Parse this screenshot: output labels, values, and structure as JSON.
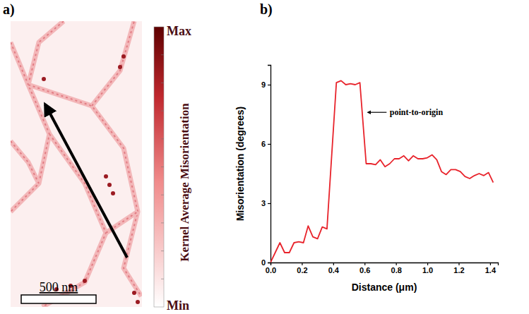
{
  "chart_data": [
    {
      "type": "map",
      "panel": "a)",
      "colorbar": {
        "title": "Kernel Average Misorientation",
        "max_label": "Max",
        "min_label": "Min"
      },
      "scale_bar": "500 nm"
    },
    {
      "type": "line",
      "panel": "b)",
      "xlabel": "Distance (μm)",
      "ylabel": "Misorientation (degrees)",
      "annotation": "point-to-origin",
      "color": "#e8232b",
      "grid": false,
      "x": [
        0,
        0.03,
        0.06,
        0.09,
        0.12,
        0.15,
        0.18,
        0.21,
        0.24,
        0.27,
        0.3,
        0.33,
        0.36,
        0.42,
        0.45,
        0.48,
        0.51,
        0.54,
        0.57,
        0.61,
        0.64,
        0.67,
        0.7,
        0.73,
        0.76,
        0.79,
        0.82,
        0.85,
        0.88,
        0.91,
        0.94,
        0.97,
        1.0,
        1.03,
        1.06,
        1.09,
        1.12,
        1.15,
        1.18,
        1.21,
        1.24,
        1.27,
        1.3,
        1.33,
        1.36,
        1.39,
        1.42
      ],
      "values": [
        0,
        0.5,
        1.0,
        0.5,
        0.5,
        1.0,
        1.05,
        1.0,
        1.85,
        1.3,
        1.2,
        1.8,
        1.7,
        9.1,
        9.2,
        9.0,
        9.05,
        9.0,
        9.1,
        5.0,
        5.0,
        4.95,
        5.2,
        4.85,
        5.0,
        5.25,
        5.25,
        5.4,
        5.15,
        5.4,
        5.25,
        5.25,
        5.3,
        5.45,
        5.2,
        4.6,
        4.45,
        4.7,
        4.7,
        4.6,
        4.35,
        4.25,
        4.4,
        4.5,
        4.4,
        4.55,
        4.05
      ],
      "xlim": [
        0,
        1.45
      ],
      "xticks": [
        {
          "value": 0,
          "label": "0.0"
        },
        0.2,
        0.4,
        0.6,
        0.8,
        {
          "value": 1,
          "label": "1.0"
        },
        1.2,
        1.4
      ],
      "ylim": [
        0,
        10
      ],
      "yticks": [
        0,
        3,
        6,
        9
      ]
    }
  ]
}
